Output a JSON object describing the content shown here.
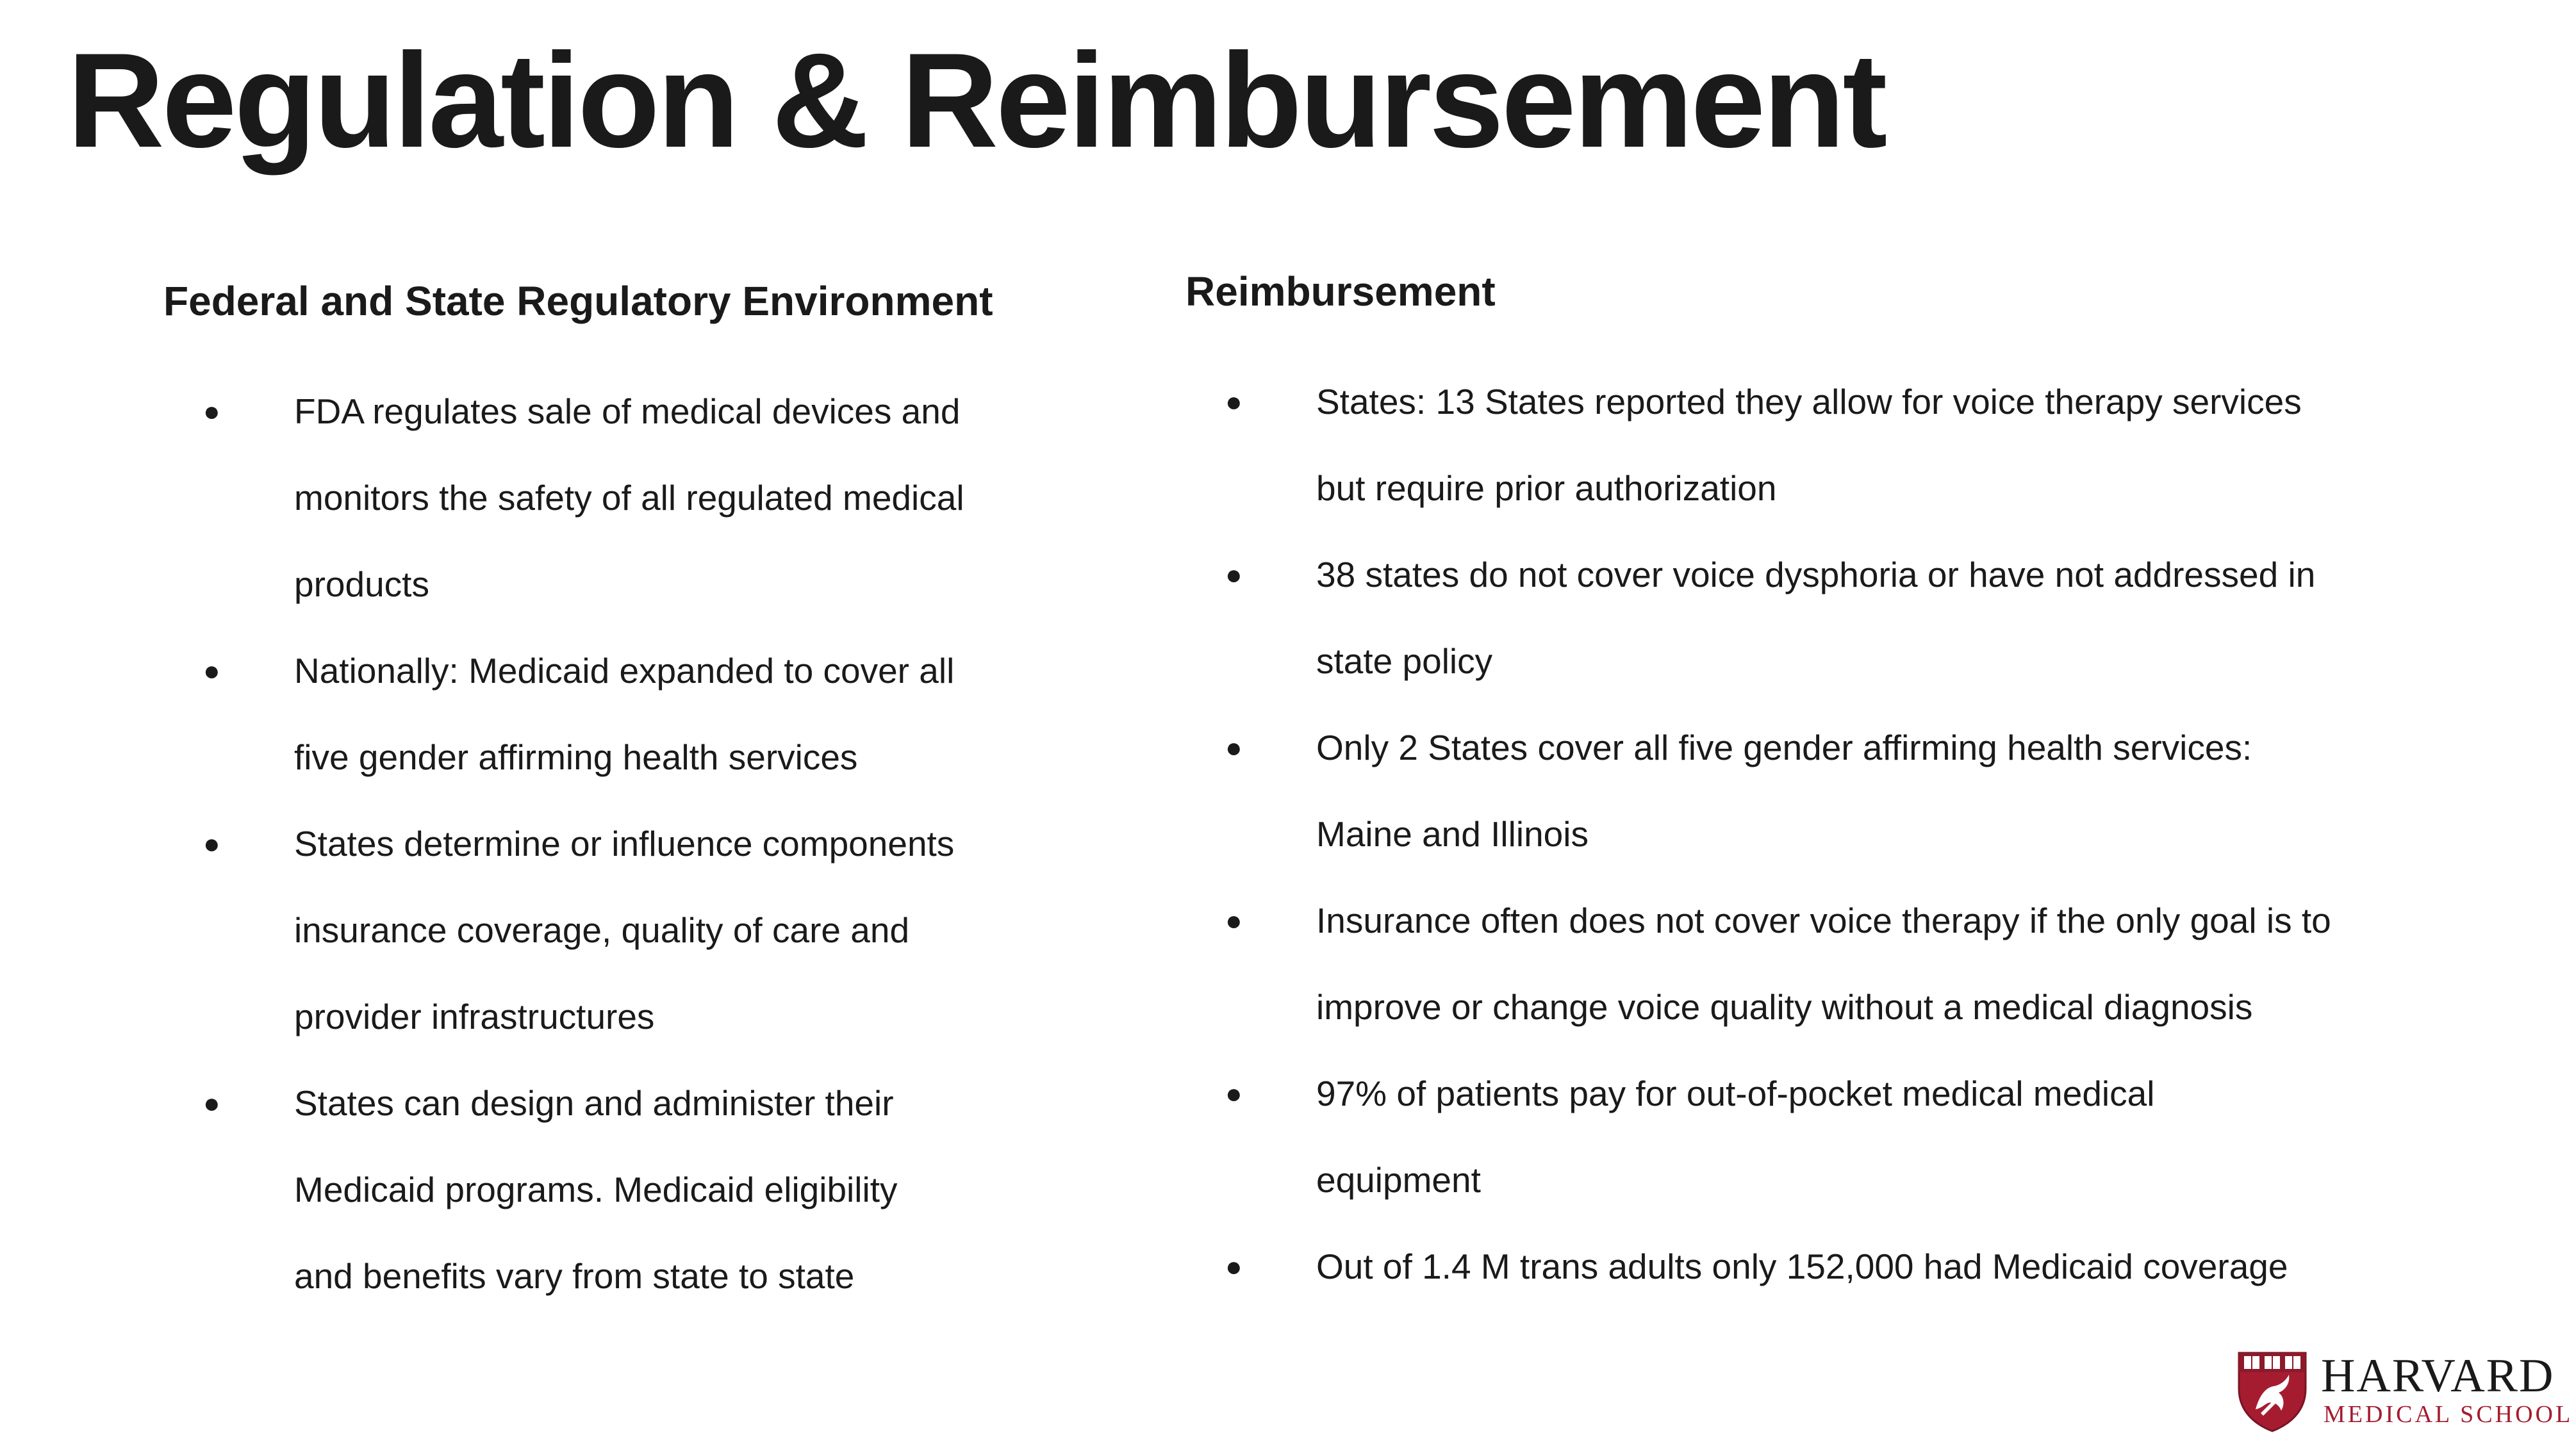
{
  "slide": {
    "title": "Regulation & Reimbursement"
  },
  "left_column": {
    "heading": "Federal and State Regulatory Environment",
    "bullets": [
      {
        "lines": [
          "FDA regulates sale of medical devices and",
          "monitors the safety of all regulated medical",
          "products"
        ]
      },
      {
        "lines": [
          "Nationally: Medicaid expanded to cover all",
          "five gender affirming health services"
        ]
      },
      {
        "lines": [
          "States determine or influence components",
          "insurance coverage, quality of care and",
          "provider infrastructures"
        ]
      },
      {
        "lines": [
          "States can design and administer their",
          "Medicaid programs.  Medicaid eligibility",
          "and benefits vary from state to state"
        ]
      }
    ]
  },
  "right_column": {
    "heading": "Reimbursement",
    "bullets": [
      {
        "lines": [
          "States: 13 States reported they allow for voice therapy services",
          "but require prior authorization"
        ]
      },
      {
        "lines": [
          "38 states do not cover voice dysphoria or have not addressed in",
          "state policy"
        ]
      },
      {
        "lines": [
          "Only 2 States cover all five gender affirming health services:",
          "Maine and Illinois"
        ]
      },
      {
        "lines": [
          "Insurance often does not cover voice therapy if the only goal is to",
          "improve or change voice quality without a medical diagnosis"
        ]
      },
      {
        "lines": [
          "97% of patients pay for out-of-pocket medical medical",
          "equipment"
        ]
      },
      {
        "lines": [
          "Out of 1.4 M trans adults only 152,000 had Medicaid coverage"
        ]
      }
    ]
  },
  "logo": {
    "name": "HARVARD",
    "subtitle": "MEDICAL SCHOOL",
    "bullet_glyph": "●",
    "crimson": "#a51c30"
  }
}
